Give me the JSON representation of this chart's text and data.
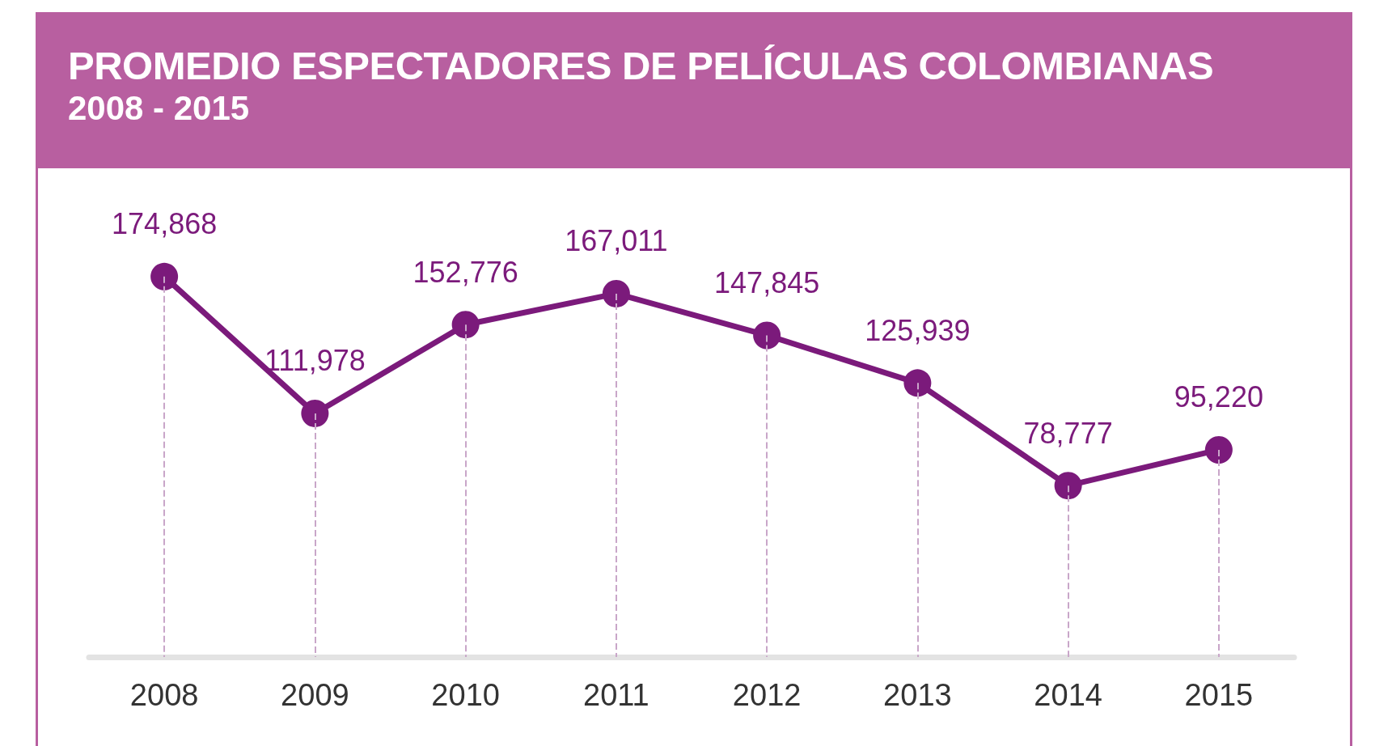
{
  "chart_data": {
    "type": "line",
    "title": "PROMEDIO ESPECTADORES DE PELÍCULAS COLOMBIANAS",
    "subtitle": "2008 - 2015",
    "categories": [
      "2008",
      "2009",
      "2010",
      "2011",
      "2012",
      "2013",
      "2014",
      "2015"
    ],
    "series": [
      {
        "color": "#7b1a7b",
        "values": [
          174868,
          111978,
          152776,
          167011,
          147845,
          125939,
          78777,
          95220
        ],
        "value_labels": [
          "174,868",
          "111,978",
          "152,776",
          "167,011",
          "147,845",
          "125,939",
          "78,777",
          "95,220"
        ]
      }
    ],
    "marker": "circle",
    "line_style": "solid",
    "grid": "x"
  }
}
